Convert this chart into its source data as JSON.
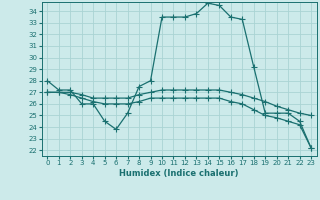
{
  "xlabel": "Humidex (Indice chaleur)",
  "bg_color": "#cceaea",
  "grid_color": "#aad4d4",
  "line_color": "#1a7070",
  "xlim": [
    -0.5,
    23.5
  ],
  "ylim": [
    21.5,
    34.8
  ],
  "xticks": [
    0,
    1,
    2,
    3,
    4,
    5,
    6,
    7,
    8,
    9,
    10,
    11,
    12,
    13,
    14,
    15,
    16,
    17,
    18,
    19,
    20,
    21,
    22,
    23
  ],
  "yticks": [
    22,
    23,
    24,
    25,
    26,
    27,
    28,
    29,
    30,
    31,
    32,
    33,
    34
  ],
  "curve1_x": [
    0,
    1,
    2,
    3,
    4,
    5,
    6,
    7,
    8,
    9,
    10,
    11,
    12,
    13,
    14,
    15,
    16,
    17,
    18,
    19,
    20,
    21,
    22,
    23
  ],
  "curve1_y": [
    28.0,
    27.2,
    27.2,
    26.0,
    26.0,
    24.5,
    23.8,
    25.2,
    27.5,
    28.0,
    33.5,
    33.5,
    33.5,
    33.8,
    34.7,
    34.5,
    33.5,
    33.3,
    29.2,
    25.2,
    25.2,
    25.2,
    24.5,
    22.2
  ],
  "curve2_x": [
    0,
    1,
    2,
    3,
    4,
    5,
    6,
    7,
    8,
    9,
    10,
    11,
    12,
    13,
    14,
    15,
    16,
    17,
    18,
    19,
    20,
    21,
    22,
    23
  ],
  "curve2_y": [
    27.0,
    27.0,
    27.0,
    26.8,
    26.5,
    26.5,
    26.5,
    26.5,
    26.8,
    27.0,
    27.2,
    27.2,
    27.2,
    27.2,
    27.2,
    27.2,
    27.0,
    26.8,
    26.5,
    26.2,
    25.8,
    25.5,
    25.2,
    25.0
  ],
  "curve3_x": [
    0,
    1,
    2,
    3,
    4,
    5,
    6,
    7,
    8,
    9,
    10,
    11,
    12,
    13,
    14,
    15,
    16,
    17,
    18,
    19,
    20,
    21,
    22,
    23
  ],
  "curve3_y": [
    27.0,
    27.0,
    26.8,
    26.5,
    26.2,
    26.0,
    26.0,
    26.0,
    26.2,
    26.5,
    26.5,
    26.5,
    26.5,
    26.5,
    26.5,
    26.5,
    26.2,
    26.0,
    25.5,
    25.0,
    24.8,
    24.5,
    24.2,
    22.2
  ]
}
